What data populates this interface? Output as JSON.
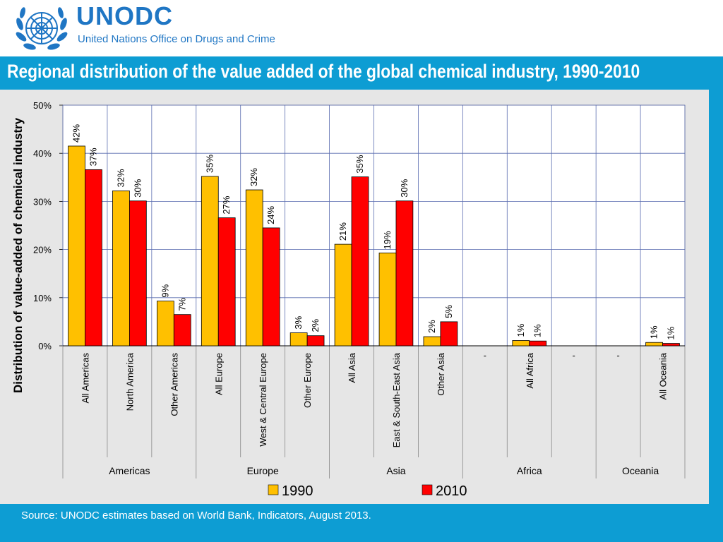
{
  "header": {
    "brand": "UNODC",
    "brand_sub": "United Nations Office on Drugs and Crime"
  },
  "colors": {
    "frame_blue": "#0d9dd3",
    "brand_blue": "#1f76c4",
    "series_1990": "#ffc000",
    "series_2010": "#ff0000"
  },
  "footer": {
    "source": "Source: UNODC estimates based on World Bank, Indicators, August 2013."
  },
  "chart_data": {
    "type": "bar",
    "title": "Regional distribution of the value added of the global chemical industry, 1990-2010",
    "ylabel": "Distribution of value-added of chemical industry",
    "xlabel": "",
    "ylim": [
      0,
      50
    ],
    "yticks": [
      "0%",
      "10%",
      "20%",
      "30%",
      "40%",
      "50%"
    ],
    "grid": true,
    "legend_position": "bottom-center",
    "categories": [
      "All Americas",
      "North America",
      "Other Americas",
      "All Europe",
      "West & Central Europe",
      "Other Europe",
      "All Asia",
      "East & South-East Asia",
      "Other Asia",
      "-",
      "All Africa",
      "-",
      "-",
      "All Oceania"
    ],
    "groups": [
      {
        "name": "Americas",
        "span": 3
      },
      {
        "name": "Europe",
        "span": 3
      },
      {
        "name": "Asia",
        "span": 3
      },
      {
        "name": "-",
        "span": 0
      },
      {
        "name": "Africa",
        "span": 3
      },
      {
        "name": "Oceania",
        "span": 2
      }
    ],
    "group_labels": [
      "Americas",
      "Europe",
      "Asia",
      "Africa",
      "Oceania"
    ],
    "series": [
      {
        "name": "1990",
        "values": [
          41.5,
          32.2,
          9.3,
          35.2,
          32.4,
          2.7,
          21.1,
          19.3,
          1.9,
          null,
          1.1,
          null,
          null,
          0.7
        ],
        "labels": [
          "42%",
          "32%",
          "9%",
          "35%",
          "32%",
          "3%",
          "21%",
          "19%",
          "2%",
          "",
          "1%",
          "",
          "",
          "1%"
        ]
      },
      {
        "name": "2010",
        "values": [
          36.6,
          30.1,
          6.5,
          26.6,
          24.5,
          2.1,
          35.1,
          30.1,
          5.0,
          null,
          1.0,
          null,
          null,
          0.5
        ],
        "labels": [
          "37%",
          "30%",
          "7%",
          "27%",
          "24%",
          "2%",
          "35%",
          "30%",
          "5%",
          "",
          "1%",
          "",
          "",
          "1%"
        ]
      }
    ]
  }
}
